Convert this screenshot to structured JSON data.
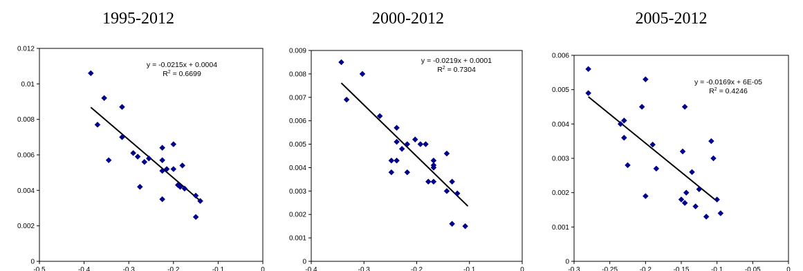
{
  "chart_data": [
    {
      "type": "scatter",
      "title": "1995-2012",
      "xlim": [
        -0.5,
        0
      ],
      "ylim": [
        0,
        0.012
      ],
      "xticks": [
        "-0.5",
        "-0.4",
        "-0.3",
        "-0.2",
        "-0.1",
        "0"
      ],
      "yticks": [
        "0",
        "0.002",
        "0.004",
        "0.006",
        "0.008",
        "0.01",
        "0.012"
      ],
      "equation": "y = -0.0215x + 0.0004",
      "r2_prefix": "R",
      "r2_sup": "2",
      "r2_value": " = 0.6699",
      "trend": {
        "slope": -0.0215,
        "intercept": 0.0004,
        "x_from": -0.385,
        "x_to": -0.14
      },
      "points": [
        [
          -0.385,
          0.0106
        ],
        [
          -0.37,
          0.0077
        ],
        [
          -0.355,
          0.0092
        ],
        [
          -0.345,
          0.0057
        ],
        [
          -0.315,
          0.0087
        ],
        [
          -0.315,
          0.007
        ],
        [
          -0.29,
          0.0061
        ],
        [
          -0.28,
          0.0059
        ],
        [
          -0.275,
          0.0042
        ],
        [
          -0.265,
          0.0056
        ],
        [
          -0.255,
          0.0058
        ],
        [
          -0.225,
          0.0064
        ],
        [
          -0.225,
          0.0057
        ],
        [
          -0.225,
          0.0051
        ],
        [
          -0.225,
          0.0035
        ],
        [
          -0.215,
          0.0052
        ],
        [
          -0.2,
          0.0066
        ],
        [
          -0.2,
          0.0052
        ],
        [
          -0.19,
          0.0043
        ],
        [
          -0.185,
          0.0042
        ],
        [
          -0.18,
          0.0054
        ],
        [
          -0.175,
          0.0041
        ],
        [
          -0.15,
          0.0025
        ],
        [
          -0.15,
          0.0037
        ],
        [
          -0.14,
          0.0034
        ]
      ]
    },
    {
      "type": "scatter",
      "title": "2000-2012",
      "xlim": [
        -0.4,
        0
      ],
      "ylim": [
        0,
        0.009
      ],
      "xticks": [
        "-0.4",
        "-0.3",
        "-0.2",
        "-0.1",
        "0"
      ],
      "yticks": [
        "0",
        "0.001",
        "0.002",
        "0.003",
        "0.004",
        "0.005",
        "0.006",
        "0.007",
        "0.008",
        "0.009"
      ],
      "equation": "y = -0.0219x + 0.0001",
      "r2_prefix": "R",
      "r2_sup": "2",
      "r2_value": " = 0.7304",
      "trend": {
        "slope": -0.0219,
        "intercept": 0.0001,
        "x_from": -0.343,
        "x_to": -0.103
      },
      "points": [
        [
          -0.343,
          0.0085
        ],
        [
          -0.333,
          0.0069
        ],
        [
          -0.303,
          0.008
        ],
        [
          -0.27,
          0.0062
        ],
        [
          -0.238,
          0.0057
        ],
        [
          -0.238,
          0.0051
        ],
        [
          -0.238,
          0.0043
        ],
        [
          -0.248,
          0.0043
        ],
        [
          -0.248,
          0.0038
        ],
        [
          -0.228,
          0.0048
        ],
        [
          -0.218,
          0.005
        ],
        [
          -0.218,
          0.0038
        ],
        [
          -0.203,
          0.0052
        ],
        [
          -0.193,
          0.005
        ],
        [
          -0.183,
          0.005
        ],
        [
          -0.178,
          0.0034
        ],
        [
          -0.168,
          0.0043
        ],
        [
          -0.168,
          0.0041
        ],
        [
          -0.168,
          0.004
        ],
        [
          -0.168,
          0.0034
        ],
        [
          -0.143,
          0.0046
        ],
        [
          -0.143,
          0.003
        ],
        [
          -0.133,
          0.0034
        ],
        [
          -0.133,
          0.0016
        ],
        [
          -0.123,
          0.0029
        ],
        [
          -0.108,
          0.0015
        ]
      ]
    },
    {
      "type": "scatter",
      "title": "2005-2012",
      "xlim": [
        -0.3,
        0
      ],
      "ylim": [
        0,
        0.006
      ],
      "xticks": [
        "-0.3",
        "-0.25",
        "-0.2",
        "-0.15",
        "-0.1",
        "-0.05",
        "0"
      ],
      "yticks": [
        "0",
        "0.001",
        "0.002",
        "0.003",
        "0.004",
        "0.005",
        "0.006"
      ],
      "equation": "y = -0.0169x + 6E-05",
      "r2_prefix": "R",
      "r2_sup": "2",
      "r2_value": " = 0.4246",
      "trend": {
        "slope": -0.0169,
        "intercept": 6e-05,
        "x_from": -0.28,
        "x_to": -0.1
      },
      "points": [
        [
          -0.28,
          0.0056
        ],
        [
          -0.28,
          0.0049
        ],
        [
          -0.235,
          0.004
        ],
        [
          -0.23,
          0.0041
        ],
        [
          -0.23,
          0.0036
        ],
        [
          -0.225,
          0.0028
        ],
        [
          -0.205,
          0.0045
        ],
        [
          -0.2,
          0.0053
        ],
        [
          -0.2,
          0.0019
        ],
        [
          -0.19,
          0.0034
        ],
        [
          -0.185,
          0.0027
        ],
        [
          -0.15,
          0.0018
        ],
        [
          -0.148,
          0.0032
        ],
        [
          -0.145,
          0.0045
        ],
        [
          -0.145,
          0.0017
        ],
        [
          -0.143,
          0.002
        ],
        [
          -0.135,
          0.0026
        ],
        [
          -0.13,
          0.0016
        ],
        [
          -0.125,
          0.0021
        ],
        [
          -0.115,
          0.0013
        ],
        [
          -0.108,
          0.0035
        ],
        [
          -0.105,
          0.003
        ],
        [
          -0.1,
          0.0018
        ],
        [
          -0.095,
          0.0014
        ]
      ]
    }
  ]
}
